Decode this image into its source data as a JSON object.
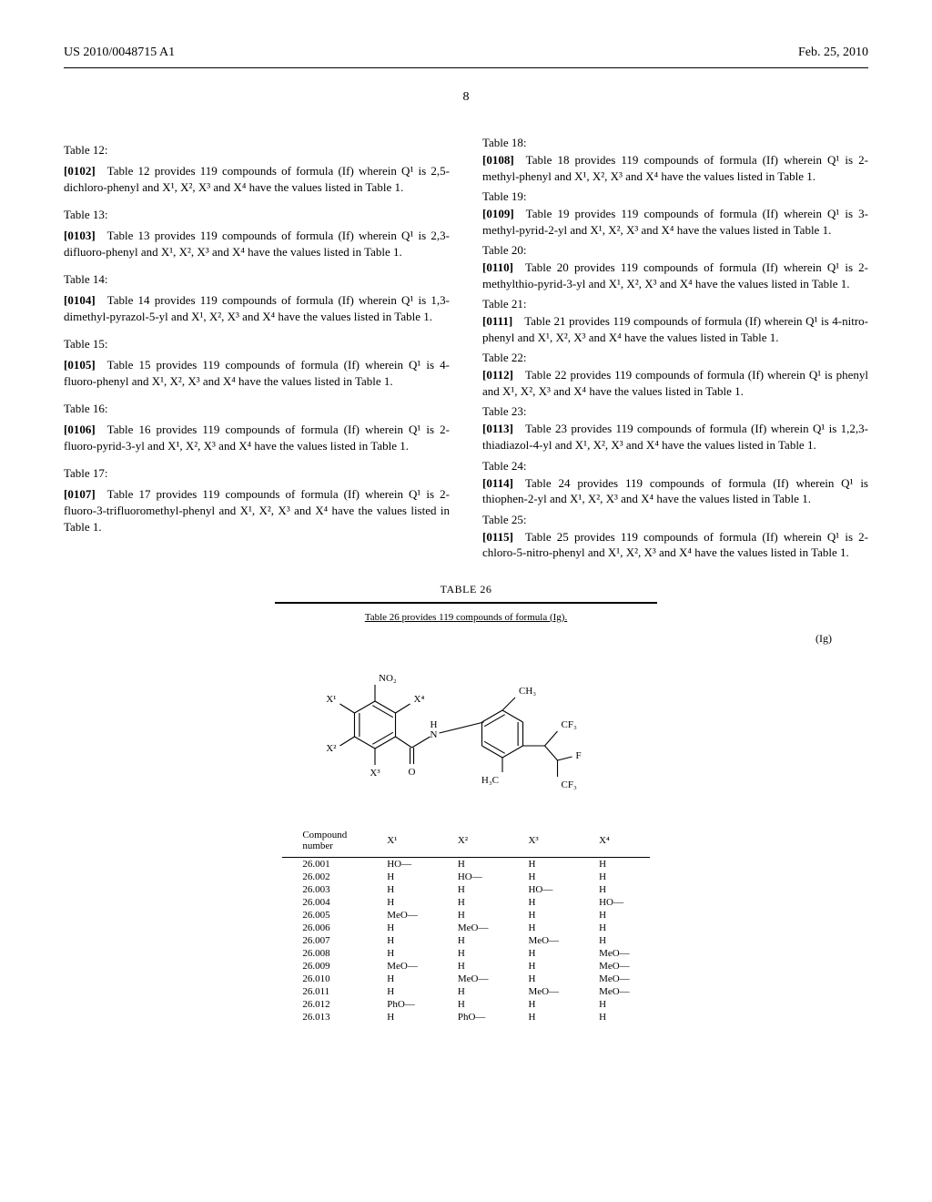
{
  "header": {
    "left": "US 2010/0048715 A1",
    "right": "Feb. 25, 2010",
    "pageNumber": "8"
  },
  "leftColumn": [
    {
      "label": "Table 12:",
      "num": "[0102]",
      "text": "Table 12 provides 119 compounds of formula (If) wherein Q¹ is 2,5-dichloro-phenyl and X¹, X², X³ and X⁴ have the values listed in Table 1."
    },
    {
      "label": "Table 13:",
      "num": "[0103]",
      "text": "Table 13 provides 119 compounds of formula (If) wherein Q¹ is 2,3-difluoro-phenyl and X¹, X², X³ and X⁴ have the values listed in Table 1."
    },
    {
      "label": "Table 14:",
      "num": "[0104]",
      "text": "Table 14 provides 119 compounds of formula (If) wherein Q¹ is 1,3-dimethyl-pyrazol-5-yl and X¹, X², X³ and X⁴ have the values listed in Table 1."
    },
    {
      "label": "Table 15:",
      "num": "[0105]",
      "text": "Table 15 provides 119 compounds of formula (If) wherein Q¹ is 4-fluoro-phenyl and X¹, X², X³ and X⁴ have the values listed in Table 1."
    },
    {
      "label": "Table 16:",
      "num": "[0106]",
      "text": "Table 16 provides 119 compounds of formula (If) wherein Q¹ is 2-fluoro-pyrid-3-yl and X¹, X², X³ and X⁴ have the values listed in Table 1."
    },
    {
      "label": "Table 17:",
      "num": "[0107]",
      "text": "Table 17 provides 119 compounds of formula (If) wherein Q¹ is 2-fluoro-3-trifluoromethyl-phenyl and X¹, X², X³ and X⁴ have the values listed in Table 1."
    }
  ],
  "rightColumn": [
    {
      "label": "Table 18:",
      "num": "[0108]",
      "text": "Table 18 provides 119 compounds of formula (If) wherein Q¹ is 2-methyl-phenyl and X¹, X², X³ and X⁴ have the values listed in Table 1."
    },
    {
      "label": "Table 19:",
      "num": "[0109]",
      "text": "Table 19 provides 119 compounds of formula (If) wherein Q¹ is 3-methyl-pyrid-2-yl and X¹, X², X³ and X⁴ have the values listed in Table 1."
    },
    {
      "label": "Table 20:",
      "num": "[0110]",
      "text": "Table 20 provides 119 compounds of formula (If) wherein Q¹ is 2-methylthio-pyrid-3-yl and X¹, X², X³ and X⁴ have the values listed in Table 1."
    },
    {
      "label": "Table 21:",
      "num": "[0111]",
      "text": "Table 21 provides 119 compounds of formula (If) wherein Q¹ is 4-nitro-phenyl and X¹, X², X³ and X⁴ have the values listed in Table 1."
    },
    {
      "label": "Table 22:",
      "num": "[0112]",
      "text": "Table 22 provides 119 compounds of formula (If) wherein Q¹ is phenyl and X¹, X², X³ and X⁴ have the values listed in Table 1."
    },
    {
      "label": "Table 23:",
      "num": "[0113]",
      "text": "Table 23 provides 119 compounds of formula (If) wherein Q¹ is 1,2,3-thiadiazol-4-yl and X¹, X², X³ and X⁴ have the values listed in Table 1."
    },
    {
      "label": "Table 24:",
      "num": "[0114]",
      "text": "Table 24 provides 119 compounds of formula (If) wherein Q¹ is thiophen-2-yl and X¹, X², X³ and X⁴ have the values listed in Table 1."
    },
    {
      "label": "Table 25:",
      "num": "[0115]",
      "text": "Table 25 provides 119 compounds of formula (If) wherein Q¹ is 2-chloro-5-nitro-phenyl and X¹, X², X³ and X⁴ have the values listed in Table 1."
    }
  ],
  "table26": {
    "title": "TABLE 26",
    "subtitle": "Table 26 provides 119 compounds of formula (Ig).",
    "formulaTag": "(Ig)",
    "structure": {
      "labels": {
        "no2": "NO₂",
        "x1": "X¹",
        "x2": "X²",
        "x3": "X³",
        "x4": "X⁴",
        "h": "H",
        "n": "N",
        "o": "O",
        "h3c": "H₃C",
        "ch3": "CH₃",
        "cf3a": "CF₃",
        "cf3b": "CF₃",
        "f": "F"
      },
      "stroke": "#000000",
      "strokeWidth": 1.1,
      "fontSize": 11
    },
    "columns": [
      "Compound number",
      "X¹",
      "X²",
      "X³",
      "X⁴"
    ],
    "rows": [
      [
        "26.001",
        "HO—",
        "H",
        "H",
        "H"
      ],
      [
        "26.002",
        "H",
        "HO—",
        "H",
        "H"
      ],
      [
        "26.003",
        "H",
        "H",
        "HO—",
        "H"
      ],
      [
        "26.004",
        "H",
        "H",
        "H",
        "HO—"
      ],
      [
        "26.005",
        "MeO—",
        "H",
        "H",
        "H"
      ],
      [
        "26.006",
        "H",
        "MeO—",
        "H",
        "H"
      ],
      [
        "26.007",
        "H",
        "H",
        "MeO—",
        "H"
      ],
      [
        "26.008",
        "H",
        "H",
        "H",
        "MeO—"
      ],
      [
        "26.009",
        "MeO—",
        "H",
        "H",
        "MeO—"
      ],
      [
        "26.010",
        "H",
        "MeO—",
        "H",
        "MeO—"
      ],
      [
        "26.011",
        "H",
        "H",
        "MeO—",
        "MeO—"
      ],
      [
        "26.012",
        "PhO—",
        "H",
        "H",
        "H"
      ],
      [
        "26.013",
        "H",
        "PhO—",
        "H",
        "H"
      ]
    ]
  }
}
